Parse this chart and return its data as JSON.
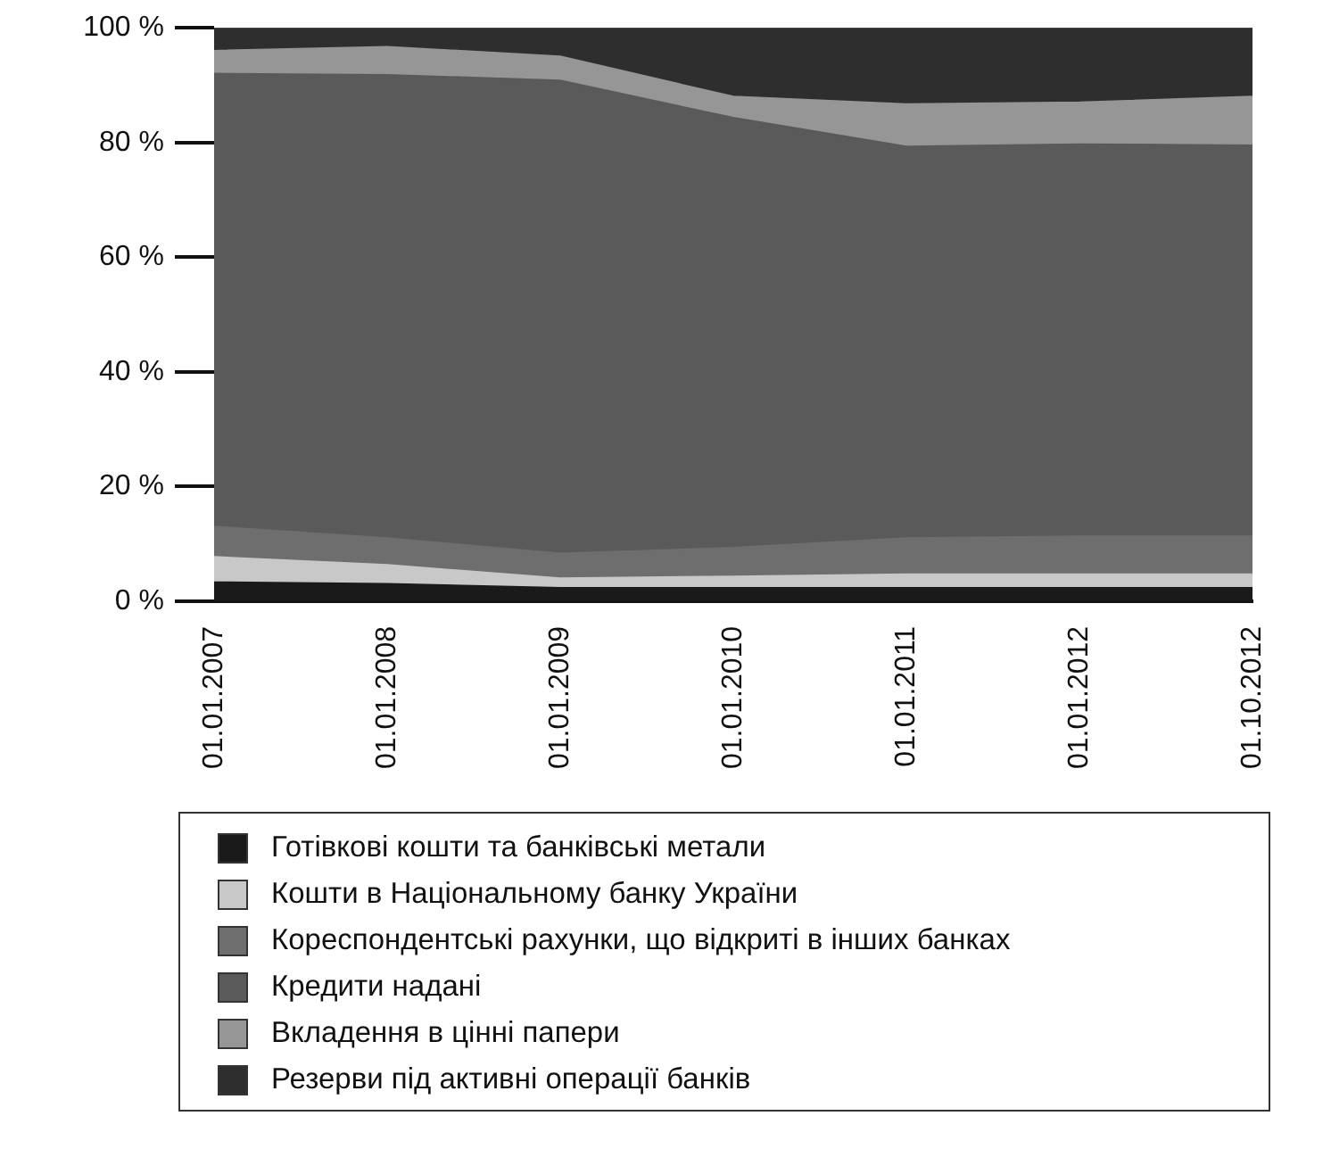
{
  "chart_data": {
    "type": "area",
    "stacked": true,
    "categories": [
      "01.01.2007",
      "01.01.2008",
      "01.01.2009",
      "01.01.2010",
      "01.01.2011",
      "01.01.2012",
      "01.10.2012"
    ],
    "series": [
      {
        "name": "Готівкові кошти та банківські метали",
        "color": "#1a1a1a",
        "values": [
          3.3,
          3,
          2.3,
          2.3,
          2.3,
          2.3,
          2.3
        ]
      },
      {
        "name": "Кошти в Національному банку України",
        "color": "#c8c8c8",
        "values": [
          4.4,
          3.3,
          1.7,
          2,
          2.4,
          2.4,
          2.4
        ]
      },
      {
        "name": "Кореспондентські рахунки, що відкриті в інших банках",
        "color": "#6e6e6e",
        "values": [
          5.3,
          4.7,
          4.3,
          5,
          6.3,
          6.6,
          6.6
        ]
      },
      {
        "name": "Кредити надані",
        "color": "#5a5a5a",
        "values": [
          79,
          80.8,
          82.5,
          75,
          68.3,
          68.4,
          68.2
        ]
      },
      {
        "name": "Вкладення в цінні папери",
        "color": "#969696",
        "values": [
          4,
          4.9,
          4.2,
          3.7,
          7.4,
          7.3,
          8.5
        ]
      },
      {
        "name": "Резерви під активні операції банків",
        "color": "#2e2e2e",
        "values": [
          4,
          3.3,
          5,
          12,
          13.3,
          13,
          12
        ]
      }
    ],
    "ylim": [
      0,
      100
    ],
    "yticks": [
      {
        "value": 0,
        "label": "0 %"
      },
      {
        "value": 20,
        "label": "20 %"
      },
      {
        "value": 40,
        "label": "40 %"
      },
      {
        "value": 60,
        "label": "60 %"
      },
      {
        "value": 80,
        "label": "80 %"
      },
      {
        "value": 100,
        "label": "100 %"
      }
    ],
    "grid": false,
    "legend": "bottom",
    "marker": "none",
    "line_style": "solid"
  }
}
